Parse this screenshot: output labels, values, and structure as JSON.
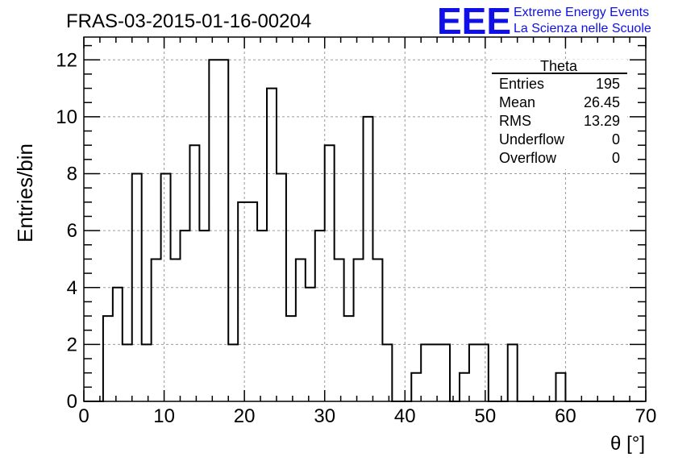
{
  "header": {
    "run_title": "FRAS-03-2015-01-16-00204",
    "logo_text": "EEE",
    "logo_line1": "Extreme Energy Events",
    "logo_line2": "La Scienza nelle Scuole",
    "logo_color": "#1010e6"
  },
  "stats_box": {
    "title": "Theta",
    "rows": [
      {
        "label": "Entries",
        "value": "195"
      },
      {
        "label": "Mean",
        "value": "26.45"
      },
      {
        "label": "RMS",
        "value": "13.29"
      },
      {
        "label": "Underflow",
        "value": "0"
      },
      {
        "label": "Overflow",
        "value": "0"
      }
    ]
  },
  "chart_data": {
    "type": "histogram",
    "xlabel": "θ [°]",
    "ylabel": "Entries/bin",
    "xlim": [
      0,
      70
    ],
    "ylim": [
      0,
      12.8
    ],
    "x_ticks": [
      0,
      10,
      20,
      30,
      40,
      50,
      60,
      70
    ],
    "y_ticks": [
      0,
      2,
      4,
      6,
      8,
      10,
      12
    ],
    "grid": true,
    "bin_width": 1.2,
    "bin_start": 0.0,
    "values": [
      0,
      0,
      3,
      4,
      2,
      8,
      2,
      5,
      8,
      5,
      6,
      9,
      6,
      12,
      12,
      2,
      7,
      7,
      6,
      11,
      8,
      3,
      5,
      4,
      6,
      9,
      5,
      3,
      5,
      10,
      5,
      2,
      0,
      0,
      1,
      2,
      2,
      2,
      0,
      1,
      2,
      2,
      0,
      0,
      2,
      0,
      0,
      0,
      0,
      1,
      0,
      0,
      0,
      0,
      0,
      0,
      0,
      0
    ]
  }
}
